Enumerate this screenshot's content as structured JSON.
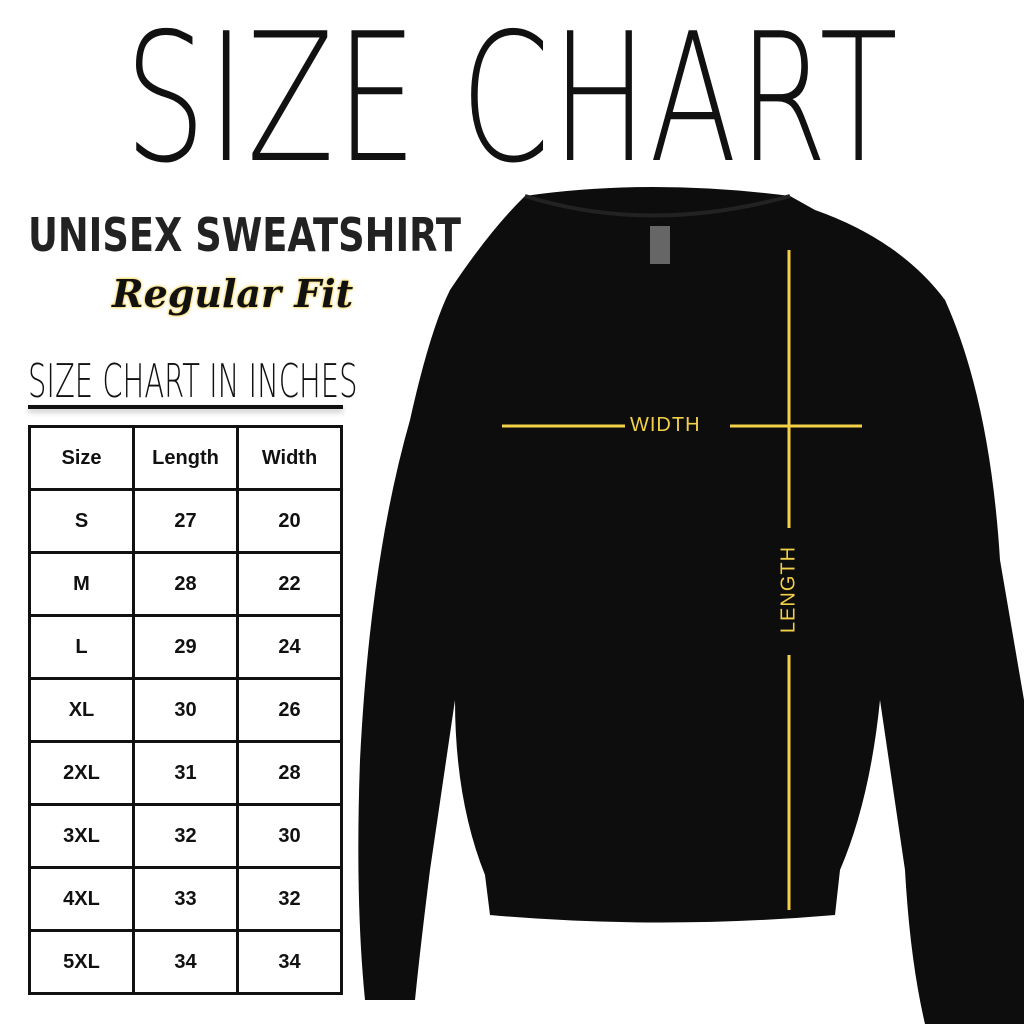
{
  "title": "SIZE CHART",
  "product": "UNISEX SWEATSHIRT",
  "fit": "Regular Fit",
  "table_title": "SIZE CHART IN INCHES",
  "table": {
    "headers": [
      "Size",
      "Length",
      "Width"
    ],
    "rows": [
      [
        "S",
        "27",
        "20"
      ],
      [
        "M",
        "28",
        "22"
      ],
      [
        "L",
        "29",
        "24"
      ],
      [
        "XL",
        "30",
        "26"
      ],
      [
        "2XL",
        "31",
        "28"
      ],
      [
        "3XL",
        "32",
        "30"
      ],
      [
        "4XL",
        "33",
        "32"
      ],
      [
        "5XL",
        "34",
        "34"
      ]
    ]
  },
  "diagram": {
    "width_label": "WIDTH",
    "length_label": "LENGTH",
    "line_color": "#f2d048",
    "shirt_color": "#0d0d0d"
  }
}
